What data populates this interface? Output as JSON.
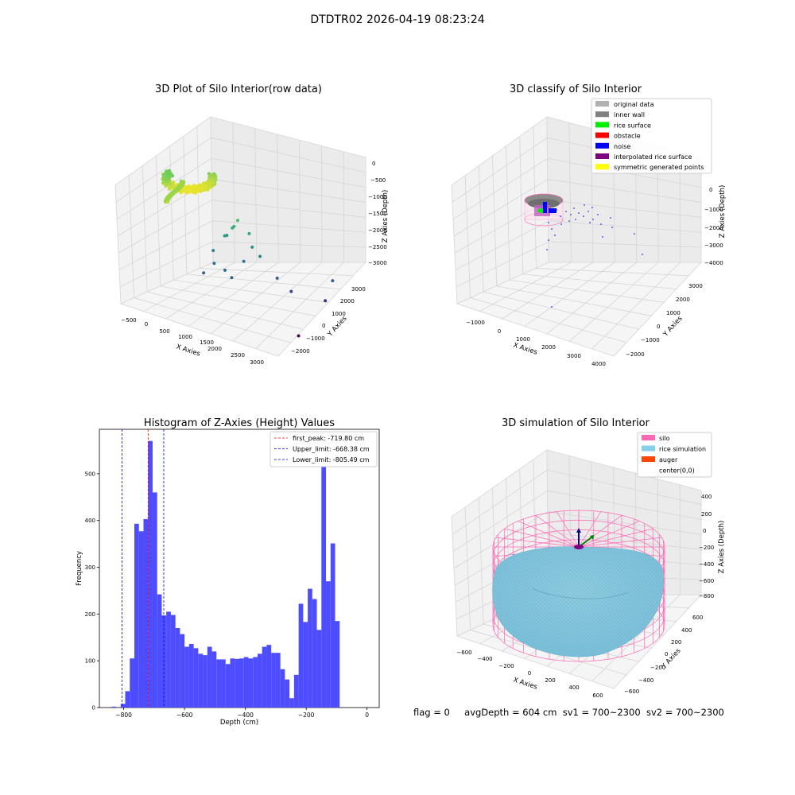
{
  "figure_title": "DTDTR02 2026-04-19 08:23:24",
  "status_line": {
    "flag": "flag = 0",
    "avg_depth": "avgDepth = 604 cm",
    "sv1": "sv1 = 700~2300",
    "sv2": "sv2 = 700~2300"
  },
  "chart_data": [
    {
      "type": "scatter3d",
      "title": "3D Plot of Silo Interior(row data)",
      "xlabel": "X Axies",
      "ylabel": "Y Axies",
      "zlabel": "Z Axies (Depth)",
      "x_ticks": [
        "−500",
        "0",
        "500",
        "1000",
        "1500",
        "2000",
        "2500",
        "3000"
      ],
      "y_ticks": [
        "−2000",
        "−1000",
        "0",
        "1000",
        "2000",
        "3000"
      ],
      "z_ticks": [
        "0",
        "−500",
        "−1000",
        "−1500",
        "−2000",
        "−2500",
        "−3000"
      ],
      "xlim": [
        -600,
        3200
      ],
      "ylim": [
        -2200,
        3300
      ],
      "zlim": [
        -3300,
        100
      ],
      "colormap": "viridis",
      "dense_cluster": {
        "x": [
          -300,
          500
        ],
        "y": [
          -400,
          400
        ],
        "z": [
          -600,
          -1100
        ]
      },
      "points": [
        {
          "x": 1300,
          "y": 200,
          "z": -1000
        },
        {
          "x": 1250,
          "y": 100,
          "z": -1150
        },
        {
          "x": 1150,
          "y": 250,
          "z": -1250
        },
        {
          "x": 1100,
          "y": -100,
          "z": -1400
        },
        {
          "x": 1000,
          "y": 300,
          "z": -1500
        },
        {
          "x": 1500,
          "y": 400,
          "z": -1300
        },
        {
          "x": 1650,
          "y": 200,
          "z": -1550
        },
        {
          "x": 1800,
          "y": 300,
          "z": -1750
        },
        {
          "x": 1600,
          "y": -200,
          "z": -1850
        },
        {
          "x": 900,
          "y": -300,
          "z": -1800
        },
        {
          "x": 1000,
          "y": -500,
          "z": -2050
        },
        {
          "x": 1300,
          "y": -600,
          "z": -2100
        },
        {
          "x": 1500,
          "y": -700,
          "z": -2200
        },
        {
          "x": 2100,
          "y": 600,
          "z": -2250
        },
        {
          "x": 900,
          "y": -900,
          "z": -2250
        },
        {
          "x": 2400,
          "y": 700,
          "z": -2500
        },
        {
          "x": 2900,
          "y": 2000,
          "z": -2300
        },
        {
          "x": 2800,
          "y": 1800,
          "z": -2800
        },
        {
          "x": 3000,
          "y": -400,
          "z": -3200
        }
      ]
    },
    {
      "type": "scatter3d",
      "title": "3D classify of Silo Interior",
      "xlabel": "X Axies",
      "ylabel": "Y Axies",
      "zlabel": "Z Axies (Depth)",
      "x_ticks": [
        "−1000",
        "0",
        "1000",
        "2000",
        "3000",
        "4000"
      ],
      "y_ticks": [
        "−2000",
        "−1000",
        "0",
        "1000",
        "2000",
        "3000"
      ],
      "z_ticks": [
        "0",
        "−1000",
        "−2000",
        "−3000",
        "−4000"
      ],
      "xlim": [
        -1500,
        4200
      ],
      "ylim": [
        -2300,
        3400
      ],
      "zlim": [
        -4200,
        300
      ],
      "legend_position": "upper right",
      "legend": [
        {
          "label": "original data",
          "color": "#b0b0b0"
        },
        {
          "label": "inner wall",
          "color": "#808080"
        },
        {
          "label": "rice surface",
          "color": "#00ee00"
        },
        {
          "label": "obstacle",
          "color": "#ff0000"
        },
        {
          "label": "noise",
          "color": "#0000ff"
        },
        {
          "label": "interpolated rice surface",
          "color": "#800080"
        },
        {
          "label": "symmetric generated points",
          "color": "#ffff00"
        }
      ]
    },
    {
      "type": "bar",
      "title": "Histogram of Z-Axies (Height) Values",
      "xlabel": "Depth (cm)",
      "ylabel": "Frequency",
      "xlim": [
        -880,
        40
      ],
      "ylim": [
        0,
        595
      ],
      "x_ticks": [
        -800,
        -600,
        -400,
        -200,
        0
      ],
      "x_tick_labels": [
        "−800",
        "−600",
        "−400",
        "−200",
        "0"
      ],
      "y_ticks": [
        0,
        100,
        200,
        300,
        400,
        500
      ],
      "y_tick_labels": [
        "0",
        "100",
        "200",
        "300",
        "400",
        "500"
      ],
      "bar_color": "#4d4dff",
      "bin_width": 15,
      "bin_start": -855,
      "values": [
        0,
        2,
        0,
        8,
        35,
        105,
        393,
        377,
        403,
        570,
        460,
        242,
        197,
        205,
        198,
        170,
        157,
        130,
        136,
        127,
        115,
        112,
        130,
        120,
        103,
        103,
        93,
        105,
        104,
        105,
        108,
        105,
        108,
        115,
        130,
        134,
        117,
        117,
        82,
        60,
        20,
        70,
        222,
        183,
        254,
        232,
        166,
        515,
        270,
        351,
        185
      ],
      "legend_position": "upper right",
      "lines": [
        {
          "label": "first_peak: -719.80 cm",
          "x": -719.8,
          "color": "#ff0000"
        },
        {
          "label": "Upper_limit: -668.38 cm",
          "x": -668.38,
          "color": "#0000ff"
        },
        {
          "label": "Lower_limit: -805.49 cm",
          "x": -805.49,
          "color": "#0000ff"
        }
      ]
    },
    {
      "type": "surface3d",
      "title": "3D simulation of Silo Interior",
      "xlabel": "X Axies",
      "ylabel": "Y Axies",
      "zlabel": "Z Axies (Depth)",
      "x_ticks": [
        "−600",
        "−400",
        "−200",
        "0",
        "200",
        "400",
        "600"
      ],
      "y_ticks": [
        "−600",
        "−400",
        "−200",
        "0",
        "200",
        "400",
        "600"
      ],
      "z_ticks": [
        "400",
        "200",
        "0",
        "−200",
        "−400",
        "−600",
        "−800"
      ],
      "xlim": [
        -700,
        700
      ],
      "ylim": [
        -700,
        700
      ],
      "zlim": [
        -950,
        480
      ],
      "legend_position": "upper right",
      "legend": [
        {
          "label": "silo",
          "color": "#ff69b4"
        },
        {
          "label": "rice simulation",
          "color": "#87ceeb"
        },
        {
          "label": "auger",
          "color": "#ff4500"
        },
        {
          "label": "center(0,0)",
          "color": "#ffffff"
        }
      ]
    }
  ]
}
